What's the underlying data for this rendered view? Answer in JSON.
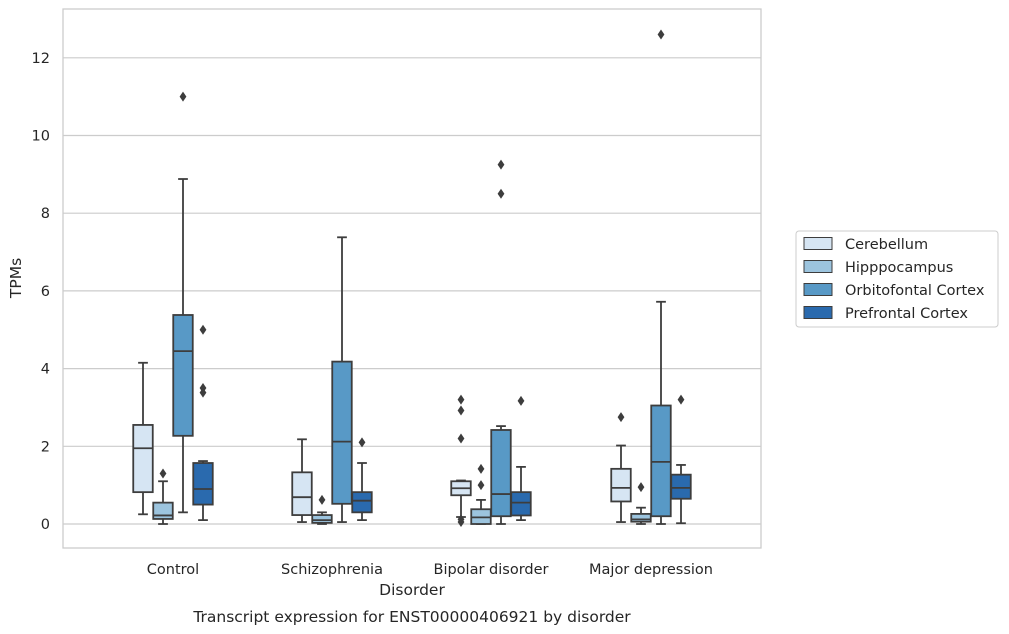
{
  "chart_data": {
    "type": "box",
    "title": "",
    "caption": "Transcript expression for ENST00000406921 by disorder",
    "xlabel": "Disorder",
    "ylabel": "TPMs",
    "ylim": [
      -0.6,
      13.2
    ],
    "yticks": [
      "0",
      "2",
      "4",
      "6",
      "8",
      "10",
      "12"
    ],
    "grid": "horizontal",
    "legend_position": "right",
    "categories": [
      "Control",
      "Schizophrenia",
      "Bipolar disorder",
      "Major depression"
    ],
    "series": [
      {
        "name": "Cerebellum",
        "color": "#d6e5f3",
        "boxes": [
          {
            "whislo": 0.25,
            "q1": 0.82,
            "med": 1.95,
            "q3": 2.55,
            "whishi": 4.15,
            "fliers": []
          },
          {
            "whislo": 0.05,
            "q1": 0.23,
            "med": 0.69,
            "q3": 1.33,
            "whishi": 2.18,
            "fliers": []
          },
          {
            "whislo": 0.18,
            "q1": 0.74,
            "med": 0.92,
            "q3": 1.1,
            "whishi": 1.12,
            "fliers": [
              3.2,
              2.92,
              2.2,
              0.12,
              0.05
            ]
          },
          {
            "whislo": 0.05,
            "q1": 0.58,
            "med": 0.93,
            "q3": 1.42,
            "whishi": 2.02,
            "fliers": [
              2.75
            ]
          }
        ]
      },
      {
        "name": "Hipppocampus",
        "color": "#9cc4de",
        "boxes": [
          {
            "whislo": 0.0,
            "q1": 0.13,
            "med": 0.22,
            "q3": 0.55,
            "whishi": 1.1,
            "fliers": [
              1.3
            ]
          },
          {
            "whislo": 0.0,
            "q1": 0.03,
            "med": 0.1,
            "q3": 0.23,
            "whishi": 0.3,
            "fliers": [
              0.62
            ]
          },
          {
            "whislo": 0.0,
            "q1": 0.0,
            "med": 0.17,
            "q3": 0.38,
            "whishi": 0.62,
            "fliers": [
              1.42,
              1.0
            ]
          },
          {
            "whislo": 0.0,
            "q1": 0.06,
            "med": 0.12,
            "q3": 0.26,
            "whishi": 0.42,
            "fliers": [
              0.95
            ]
          }
        ]
      },
      {
        "name": "Orbitofontal Cortex",
        "color": "#5899c6",
        "boxes": [
          {
            "whislo": 0.3,
            "q1": 2.27,
            "med": 4.45,
            "q3": 5.38,
            "whishi": 8.88,
            "fliers": [
              11.0
            ]
          },
          {
            "whislo": 0.05,
            "q1": 0.52,
            "med": 2.12,
            "q3": 4.18,
            "whishi": 7.38,
            "fliers": []
          },
          {
            "whislo": 0.0,
            "q1": 0.2,
            "med": 0.77,
            "q3": 2.42,
            "whishi": 2.52,
            "fliers": [
              9.25,
              8.5
            ]
          },
          {
            "whislo": 0.0,
            "q1": 0.2,
            "med": 1.6,
            "q3": 3.05,
            "whishi": 5.72,
            "fliers": [
              12.6
            ]
          }
        ]
      },
      {
        "name": "Prefrontal Cortex",
        "color": "#2a6aae",
        "boxes": [
          {
            "whislo": 0.1,
            "q1": 0.5,
            "med": 0.9,
            "q3": 1.57,
            "whishi": 1.62,
            "fliers": [
              5.0,
              3.5,
              3.38
            ]
          },
          {
            "whislo": 0.1,
            "q1": 0.3,
            "med": 0.6,
            "q3": 0.82,
            "whishi": 1.57,
            "fliers": [
              2.1
            ]
          },
          {
            "whislo": 0.1,
            "q1": 0.22,
            "med": 0.55,
            "q3": 0.82,
            "whishi": 1.47,
            "fliers": [
              3.17
            ]
          },
          {
            "whislo": 0.02,
            "q1": 0.65,
            "med": 0.93,
            "q3": 1.27,
            "whishi": 1.52,
            "fliers": [
              3.2
            ]
          }
        ]
      }
    ]
  }
}
